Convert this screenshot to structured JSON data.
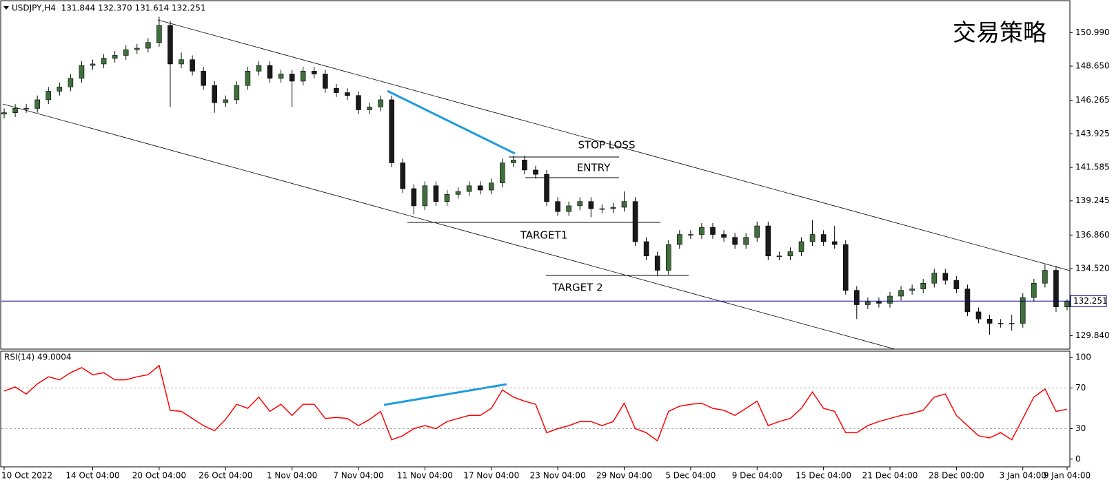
{
  "chart_data": [
    {
      "type": "candlestick",
      "title": "USDJPY,H4  131.844 132.370 131.614 132.251",
      "annotations": [
        "交易策略",
        "STOP LOSS",
        "ENTRY",
        "TARGET1",
        "TARGET 2"
      ],
      "categories": [
        "10 Oct 2022",
        null,
        null,
        null,
        null,
        null,
        null,
        null,
        "14 Oct 04:00",
        null,
        null,
        null,
        null,
        null,
        "20 Oct 04:00",
        null,
        null,
        null,
        null,
        null,
        "26 Oct 04:00",
        null,
        null,
        null,
        null,
        null,
        "1 Nov 04:00",
        null,
        null,
        null,
        null,
        null,
        "7 Nov 04:00",
        null,
        null,
        null,
        null,
        null,
        "11 Nov 04:00",
        null,
        null,
        null,
        null,
        null,
        "17 Nov 04:00",
        null,
        null,
        null,
        null,
        null,
        "23 Nov 04:00",
        null,
        null,
        null,
        null,
        null,
        "29 Nov 04:00",
        null,
        null,
        null,
        null,
        null,
        "5 Dec 04:00",
        null,
        null,
        null,
        null,
        null,
        "9 Dec 04:00",
        null,
        null,
        null,
        null,
        null,
        "15 Dec 04:00",
        null,
        null,
        null,
        null,
        null,
        "21 Dec 04:00",
        null,
        null,
        null,
        null,
        null,
        "28 Dec 00:00",
        null,
        null,
        null,
        null,
        null,
        "3 Jan 04:00",
        null,
        null,
        null,
        "9 Jan 04:00"
      ],
      "open": [
        145.3,
        145.4,
        145.7,
        145.7,
        146.3,
        146.9,
        147.2,
        147.8,
        148.7,
        148.8,
        149.2,
        149.4,
        149.8,
        149.9,
        150.3,
        151.5,
        148.8,
        149.1,
        148.3,
        147.3,
        146.1,
        146.3,
        147.3,
        148.3,
        148.7,
        147.8,
        148.1,
        147.6,
        148.3,
        148.1,
        147.1,
        146.8,
        146.6,
        145.6,
        145.8,
        146.3,
        141.9,
        140.1,
        138.9,
        140.3,
        139.2,
        139.7,
        139.9,
        140.3,
        140.0,
        140.5,
        141.9,
        142.1,
        141.4,
        141.1,
        139.2,
        138.5,
        138.9,
        139.2,
        138.7,
        138.7,
        138.8,
        139.2,
        136.4,
        135.4,
        134.4,
        136.2,
        136.9,
        136.9,
        137.4,
        136.9,
        136.7,
        136.2,
        136.7,
        137.5,
        135.4,
        135.4,
        135.7,
        136.4,
        136.9,
        136.4,
        136.2,
        133.0,
        132.0,
        132.2,
        132.1,
        132.6,
        133.0,
        133.1,
        133.5,
        134.2,
        133.7,
        133.1,
        131.5,
        131.0,
        130.7,
        130.7,
        130.7,
        132.5,
        133.5,
        134.4,
        131.844
      ],
      "high": [
        145.7,
        146.0,
        146.0,
        146.6,
        147.2,
        147.5,
        148.1,
        149.0,
        149.1,
        149.5,
        149.7,
        150.1,
        150.2,
        150.6,
        152.1,
        151.8,
        149.6,
        149.4,
        148.6,
        147.6,
        146.6,
        147.6,
        148.6,
        149.0,
        149.0,
        148.4,
        148.4,
        148.6,
        148.6,
        148.4,
        147.4,
        147.1,
        146.9,
        146.1,
        146.6,
        146.6,
        142.2,
        140.4,
        140.6,
        140.6,
        140.0,
        140.2,
        140.6,
        140.6,
        140.8,
        142.2,
        142.4,
        142.4,
        141.7,
        141.4,
        139.5,
        139.2,
        139.5,
        139.5,
        139.0,
        139.1,
        139.9,
        139.5,
        136.7,
        135.7,
        136.5,
        137.2,
        137.2,
        137.7,
        137.7,
        137.2,
        137.0,
        137.0,
        137.8,
        137.8,
        135.7,
        136.0,
        136.7,
        137.9,
        137.2,
        137.5,
        136.5,
        133.3,
        132.5,
        132.5,
        132.9,
        133.3,
        133.4,
        133.8,
        134.5,
        134.5,
        134.0,
        133.4,
        131.8,
        131.3,
        131.0,
        131.3,
        132.8,
        133.8,
        134.8,
        134.7,
        132.37
      ],
      "low": [
        145.0,
        145.1,
        145.4,
        145.4,
        146.0,
        146.6,
        146.9,
        147.5,
        148.4,
        148.5,
        148.9,
        149.1,
        149.5,
        149.6,
        150.0,
        145.8,
        148.5,
        148.0,
        147.0,
        145.4,
        145.8,
        146.0,
        147.0,
        148.0,
        147.5,
        147.5,
        145.8,
        147.3,
        147.8,
        146.8,
        146.5,
        146.3,
        145.3,
        145.3,
        145.5,
        141.6,
        139.8,
        138.3,
        138.6,
        138.9,
        138.9,
        139.4,
        139.6,
        139.7,
        139.7,
        140.2,
        141.6,
        141.1,
        140.8,
        138.9,
        138.2,
        138.2,
        138.6,
        138.1,
        138.4,
        138.4,
        138.5,
        136.1,
        135.1,
        134.0,
        134.1,
        135.9,
        136.6,
        136.6,
        136.6,
        136.4,
        135.9,
        135.9,
        136.4,
        135.1,
        135.1,
        135.1,
        135.4,
        136.1,
        136.1,
        135.9,
        132.7,
        131.0,
        131.7,
        131.8,
        131.8,
        132.3,
        132.7,
        132.8,
        133.2,
        133.4,
        132.8,
        131.2,
        130.7,
        129.9,
        130.4,
        130.2,
        130.4,
        132.2,
        133.2,
        131.5,
        131.614
      ],
      "close": [
        145.4,
        145.7,
        145.7,
        146.3,
        146.9,
        147.2,
        147.8,
        148.7,
        148.8,
        149.2,
        149.4,
        149.8,
        149.9,
        150.3,
        151.5,
        148.8,
        149.1,
        148.3,
        147.3,
        146.1,
        146.3,
        147.3,
        148.3,
        148.7,
        147.8,
        148.1,
        147.6,
        148.3,
        148.1,
        147.1,
        146.8,
        146.6,
        145.6,
        145.8,
        146.3,
        141.9,
        140.1,
        138.9,
        140.3,
        139.2,
        139.7,
        139.9,
        140.3,
        140.0,
        140.5,
        141.9,
        142.1,
        141.4,
        141.1,
        139.2,
        138.5,
        138.9,
        139.2,
        138.7,
        138.7,
        138.8,
        139.2,
        136.4,
        135.4,
        134.4,
        136.2,
        136.9,
        136.9,
        137.4,
        136.9,
        136.7,
        136.2,
        136.7,
        137.5,
        135.4,
        135.4,
        135.7,
        136.4,
        136.9,
        136.4,
        136.2,
        133.0,
        132.0,
        132.2,
        132.1,
        132.6,
        133.0,
        133.1,
        133.5,
        134.2,
        133.7,
        133.1,
        131.5,
        131.0,
        130.7,
        130.7,
        130.7,
        132.5,
        133.5,
        134.4,
        131.844,
        132.251
      ],
      "up_color": "#3f6f3a",
      "down_color": "#1a1a1a",
      "wick_color": "#000000",
      "price_line_color": "#000080",
      "ylim": [
        128.9,
        153.17
      ],
      "yticks": [
        {
          "value": 150.99,
          "label": "150.990"
        },
        {
          "value": 148.65,
          "label": "148.650"
        },
        146.265,
        143.925,
        141.585,
        139.245,
        {
          "value": 136.86,
          "label": "136.860"
        },
        {
          "value": 134.52,
          "label": "134.520"
        },
        {
          "value": 129.84,
          "label": "129.840"
        }
      ]
    },
    {
      "type": "line",
      "title": "RSI(14) 49.0004",
      "values": [
        67,
        71,
        64,
        74,
        81,
        78,
        85,
        90,
        83,
        85,
        78,
        78,
        81,
        83,
        92,
        48,
        47,
        40,
        33,
        28,
        39,
        54,
        50,
        61,
        47,
        54,
        43,
        54,
        54,
        40,
        41,
        40,
        33,
        39,
        47,
        19,
        23,
        30,
        33,
        30,
        37,
        40,
        43,
        43,
        50,
        68,
        61,
        57,
        54,
        26,
        30,
        33,
        37,
        37,
        33,
        37,
        55,
        30,
        26,
        18,
        47,
        52,
        54,
        55,
        50,
        48,
        43,
        50,
        57,
        33,
        37,
        40,
        50,
        66,
        50,
        47,
        26,
        26,
        33,
        37,
        40,
        43,
        45,
        48,
        61,
        64,
        43,
        33,
        23,
        21,
        26,
        19,
        40,
        61,
        69,
        47,
        49.0004
      ],
      "color": "#ff0000",
      "ylim": [
        -6.9,
        105.5
      ],
      "yticks": [
        0,
        30,
        70,
        100
      ],
      "levels": [
        30,
        70
      ]
    }
  ]
}
